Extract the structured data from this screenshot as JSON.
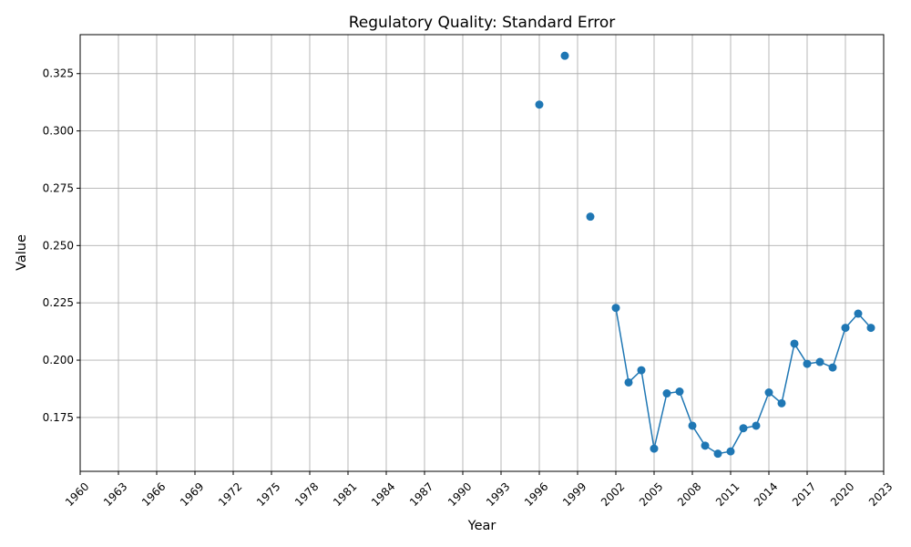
{
  "chart_data": {
    "type": "line",
    "title": "Regulatory Quality: Standard Error",
    "xlabel": "Year",
    "ylabel": "Value",
    "xlim": [
      1960,
      2023
    ],
    "ylim": [
      0.1515,
      0.342
    ],
    "x_ticks": [
      "1960",
      "1963",
      "1966",
      "1969",
      "1972",
      "1975",
      "1978",
      "1981",
      "1984",
      "1987",
      "1990",
      "1993",
      "1996",
      "1999",
      "2002",
      "2005",
      "2008",
      "2011",
      "2014",
      "2017",
      "2020",
      "2023"
    ],
    "y_ticks": [
      "0.175",
      "0.200",
      "0.225",
      "0.250",
      "0.275",
      "0.300",
      "0.325"
    ],
    "grid": true,
    "color": "#1f77b4",
    "series": [
      {
        "x": [
          1996,
          1998,
          2000,
          2002,
          2003,
          2004,
          2005,
          2006,
          2007,
          2008,
          2009,
          2010,
          2011,
          2012,
          2013,
          2014,
          2015,
          2016,
          2017,
          2018,
          2019,
          2020,
          2021,
          2022
        ],
        "values": [
          0.3115,
          0.3328,
          0.2626,
          0.2228,
          0.1903,
          0.1956,
          0.1614,
          0.1855,
          0.1863,
          0.1714,
          0.1627,
          0.1592,
          0.1602,
          0.1703,
          0.1714,
          0.1859,
          0.1812,
          0.2072,
          0.1984,
          0.1992,
          0.1968,
          0.2141,
          0.2203,
          0.2141
        ]
      }
    ]
  }
}
